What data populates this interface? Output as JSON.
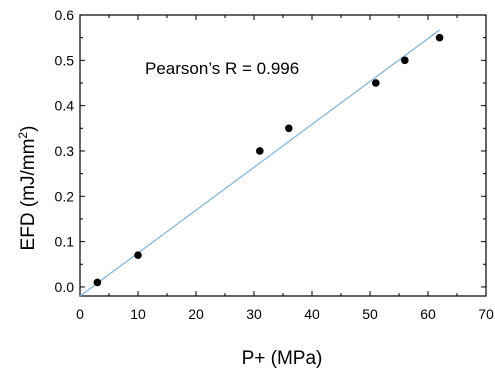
{
  "chart_data": {
    "type": "scatter",
    "xlabel": "P+ (MPa)",
    "ylabel_parts": {
      "main": "EFD (mJ/mm",
      "superscript": "2",
      "close": ")"
    },
    "annotation": "Pearson’s R = 0.996",
    "xlim": [
      0,
      70
    ],
    "ylim": [
      -0.02,
      0.6
    ],
    "xticks": [
      0,
      10,
      20,
      30,
      40,
      50,
      60,
      70
    ],
    "yticks": [
      0.0,
      0.1,
      0.2,
      0.3,
      0.4,
      0.5,
      0.6
    ],
    "xtick_labels": [
      "0",
      "10",
      "20",
      "30",
      "40",
      "50",
      "60",
      "70"
    ],
    "ytick_labels": [
      "0.0",
      "0.1",
      "0.2",
      "0.3",
      "0.4",
      "0.5",
      "0.6"
    ],
    "points": [
      {
        "x": 3,
        "y": 0.01
      },
      {
        "x": 10,
        "y": 0.07
      },
      {
        "x": 31,
        "y": 0.3
      },
      {
        "x": 36,
        "y": 0.35
      },
      {
        "x": 51,
        "y": 0.45
      },
      {
        "x": 56,
        "y": 0.5
      },
      {
        "x": 62,
        "y": 0.55
      }
    ],
    "fit_line": {
      "x": [
        0,
        62
      ],
      "y": [
        -0.02,
        0.567
      ]
    },
    "grid": false,
    "colors": {
      "points": "#000000",
      "fit_line": "#8ab8d8",
      "axes": "#000000"
    }
  }
}
